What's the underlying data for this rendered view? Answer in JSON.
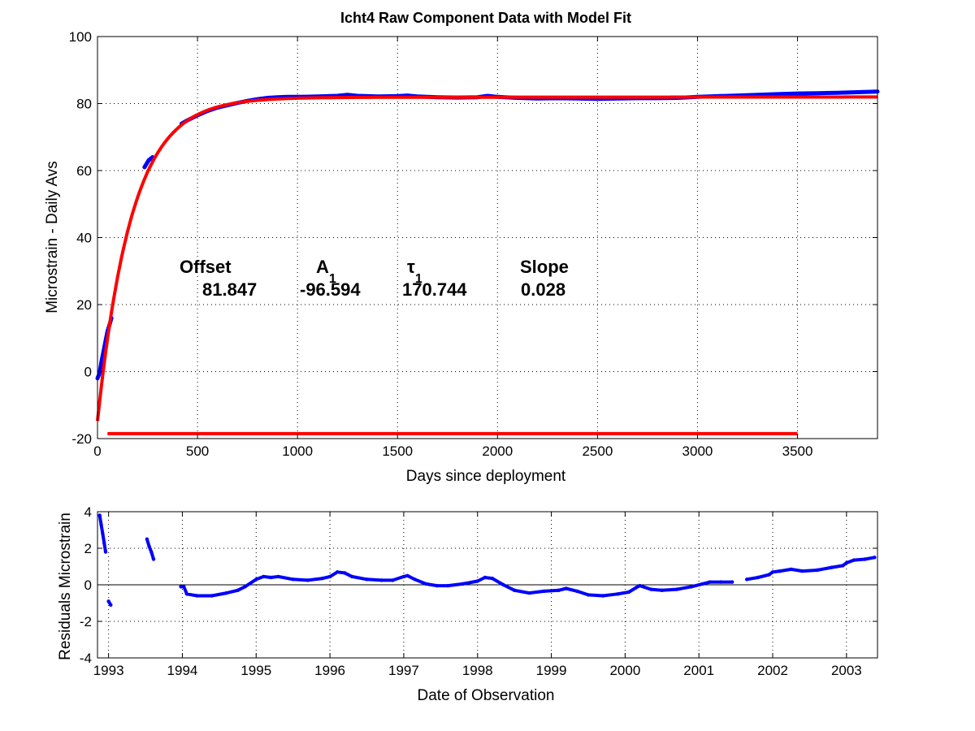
{
  "figure": {
    "title": "Icht4  Raw Component Data with Model Fit",
    "colors": {
      "data": "#0000ff",
      "fit": "#ff0000",
      "zero_line": "#000000",
      "background": "#ffffff"
    }
  },
  "chart_data": [
    {
      "type": "line",
      "title": "Icht4  Raw Component Data with Model Fit",
      "xlabel": "Days since deployment",
      "ylabel": "Microstrain - Daily Avs",
      "xlim": [
        0,
        3900
      ],
      "ylim": [
        -20,
        100
      ],
      "xticks": [
        0,
        500,
        1000,
        1500,
        2000,
        2500,
        3000,
        3500
      ],
      "yticks": [
        -20,
        0,
        20,
        40,
        60,
        80,
        100
      ],
      "grid": true,
      "annotations": {
        "headers": [
          "Offset",
          "A",
          "τ",
          "Slope"
        ],
        "subscripts": [
          "",
          "1",
          "1",
          ""
        ],
        "values": [
          "81.847",
          "-96.594",
          "170.744",
          "0.028"
        ]
      },
      "model": {
        "offset": 81.847,
        "amplitude": -96.594,
        "tau": 170.744,
        "slope": 0.028,
        "x_range": [
          0,
          3900
        ]
      },
      "series": [
        {
          "kind": "data",
          "color": "#0000ff",
          "segments": [
            {
              "x": [
                0,
                10,
                20,
                30,
                40,
                50,
                60,
                70
              ],
              "y": [
                -2,
                -0.5,
                3,
                6,
                9,
                12,
                14,
                16
              ]
            },
            {
              "x": [
                235,
                245,
                255,
                265,
                275
              ],
              "y": [
                61,
                62,
                63,
                63.5,
                64
              ]
            },
            {
              "x": [
                420,
                450,
                500,
                550,
                600,
                650,
                700,
                750,
                800,
                850,
                900,
                950,
                1000,
                1100,
                1200,
                1250,
                1300,
                1400,
                1500,
                1550,
                1600,
                1700,
                1800,
                1900,
                1950,
                2000,
                2100,
                2200,
                2300,
                2400,
                2500,
                2600,
                2700,
                2800,
                2900,
                3000,
                3100,
                3200,
                3300,
                3400,
                3500,
                3600,
                3700,
                3800,
                3900
              ],
              "y": [
                74,
                75,
                76.5,
                77.8,
                78.8,
                79.5,
                80.2,
                80.8,
                81.3,
                81.7,
                81.9,
                82.0,
                82.0,
                82.1,
                82.3,
                82.6,
                82.3,
                82.1,
                82.2,
                82.4,
                82.1,
                81.9,
                81.8,
                81.9,
                82.3,
                82.0,
                81.7,
                81.5,
                81.6,
                81.5,
                81.4,
                81.5,
                81.6,
                81.6,
                81.7,
                82.0,
                82.2,
                82.4,
                82.6,
                82.8,
                83.0,
                83.1,
                83.2,
                83.4,
                83.6
              ]
            }
          ]
        },
        {
          "kind": "fit",
          "color": "#ff0000",
          "name": "",
          "model": true
        },
        {
          "kind": "baseline",
          "color": "#ff0000",
          "x": [
            50,
            3500
          ],
          "y": [
            -18.5,
            -18.5
          ]
        }
      ]
    },
    {
      "type": "scatter",
      "xlabel": "Date of Observation",
      "ylabel": "Residuals Microstrain",
      "xlim": [
        1992.85,
        2003.42
      ],
      "ylim": [
        -4,
        4
      ],
      "xticks": [
        1993,
        1994,
        1995,
        1996,
        1997,
        1998,
        1999,
        2000,
        2001,
        2002,
        2003
      ],
      "xticklabels": [
        "1993",
        "1994",
        "1995",
        "1996",
        "1997",
        "1998",
        "1999",
        "2000",
        "2001",
        "2002",
        "2003"
      ],
      "yticks": [
        -4,
        -2,
        0,
        2,
        4
      ],
      "grid": true,
      "zero_line": 0,
      "series": [
        {
          "color": "#0000ff",
          "segments": [
            {
              "x": [
                1992.88,
                1992.9,
                1992.92,
                1992.94,
                1992.96
              ],
              "y": [
                3.8,
                3.3,
                2.8,
                2.3,
                1.8
              ]
            },
            {
              "x": [
                1993.0,
                1993.03
              ],
              "y": [
                -0.9,
                -1.1
              ]
            },
            {
              "x": [
                1993.52,
                1993.55,
                1993.58,
                1993.61
              ],
              "y": [
                2.5,
                2.1,
                1.8,
                1.4
              ]
            },
            {
              "x": [
                1993.98,
                1994.02,
                1994.06,
                1994.2,
                1994.4,
                1994.6,
                1994.75,
                1994.85,
                1995.0,
                1995.1,
                1995.2,
                1995.3,
                1995.5,
                1995.7,
                1995.9,
                1996.0,
                1996.1,
                1996.2,
                1996.3,
                1996.5,
                1996.7,
                1996.85,
                1997.0,
                1997.05,
                1997.15,
                1997.3,
                1997.45,
                1997.6,
                1997.8,
                1998.0,
                1998.1,
                1998.2,
                1998.35,
                1998.5,
                1998.7,
                1998.9,
                1999.1,
                1999.2,
                1999.35,
                1999.5,
                1999.7,
                1999.9,
                2000.05,
                2000.15,
                2000.2,
                2000.35,
                2000.5,
                2000.7,
                2000.9,
                2001.05,
                2001.15,
                2001.3,
                2001.45
              ],
              "y": [
                -0.1,
                -0.1,
                -0.5,
                -0.6,
                -0.6,
                -0.45,
                -0.3,
                -0.1,
                0.3,
                0.45,
                0.4,
                0.45,
                0.3,
                0.25,
                0.35,
                0.45,
                0.7,
                0.65,
                0.45,
                0.3,
                0.25,
                0.25,
                0.45,
                0.5,
                0.3,
                0.05,
                -0.05,
                -0.05,
                0.05,
                0.2,
                0.4,
                0.35,
                0.0,
                -0.3,
                -0.45,
                -0.35,
                -0.3,
                -0.2,
                -0.35,
                -0.55,
                -0.6,
                -0.5,
                -0.4,
                -0.15,
                -0.05,
                -0.25,
                -0.3,
                -0.25,
                -0.1,
                0.05,
                0.15,
                0.15,
                0.15
              ]
            },
            {
              "x": [
                2001.65,
                2001.8,
                2001.95,
                2002.0,
                2002.1,
                2002.25,
                2002.4,
                2002.6,
                2002.8,
                2002.95,
                2003.0,
                2003.1,
                2003.25,
                2003.38
              ],
              "y": [
                0.3,
                0.4,
                0.55,
                0.7,
                0.75,
                0.85,
                0.75,
                0.8,
                0.95,
                1.05,
                1.2,
                1.35,
                1.4,
                1.5
              ]
            }
          ]
        }
      ]
    }
  ]
}
